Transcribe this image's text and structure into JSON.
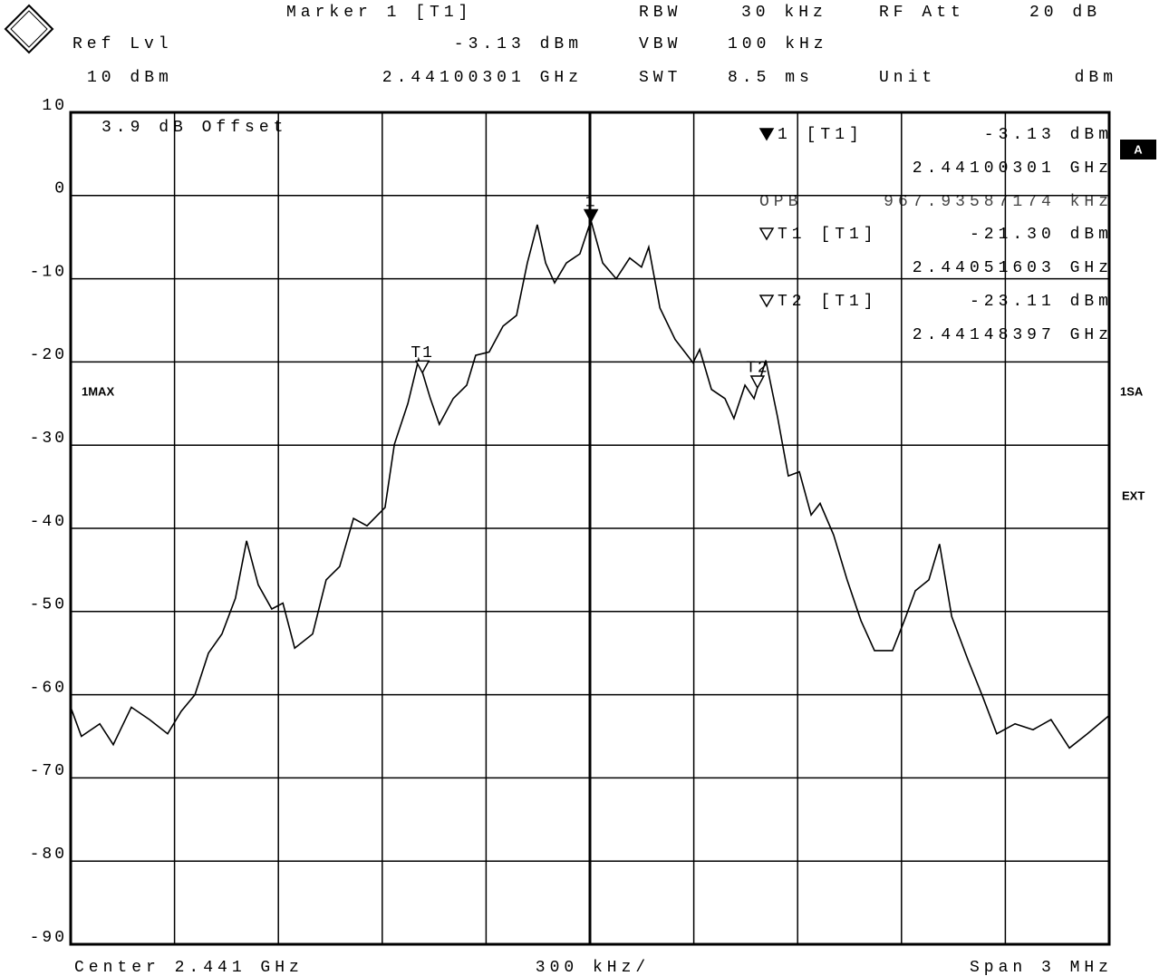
{
  "header": {
    "marker": "Marker 1 [T1]",
    "ref_lvl_label": "Ref Lvl",
    "ref_lvl": "10 dBm",
    "marker_level": "-3.13 dBm",
    "marker_freq": "2.44100301 GHz",
    "rbw_label": "RBW",
    "rbw": "30 kHz",
    "vbw_label": "VBW",
    "vbw": "100 kHz",
    "swt_label": "SWT",
    "swt": "8.5 ms",
    "rf_att_label": "RF Att",
    "rf_att": "20 dB",
    "unit_label": "Unit",
    "unit": "dBm"
  },
  "chart_data": {
    "type": "line",
    "annotation": "3.9 dB Offset",
    "color": "#000000",
    "grid": true,
    "xlim": [
      2.4395,
      2.4425
    ],
    "ylim": [
      -90,
      10
    ],
    "yticks": [
      10,
      0,
      -10,
      -20,
      -30,
      -40,
      -50,
      -60,
      -70,
      -80,
      -90
    ],
    "x": [
      2.4395,
      2.439531,
      2.439584,
      2.439623,
      2.439675,
      2.439728,
      2.43978,
      2.439819,
      2.439859,
      2.439898,
      2.439937,
      2.439976,
      2.440008,
      2.440042,
      2.440081,
      2.440113,
      2.440147,
      2.440199,
      2.440238,
      2.440277,
      2.440317,
      2.440356,
      2.440408,
      2.440435,
      2.440474,
      2.440505,
      2.440539,
      2.440565,
      2.440605,
      2.440644,
      2.44067,
      2.440709,
      2.440749,
      2.440788,
      2.440819,
      2.440848,
      2.440872,
      2.440898,
      2.440932,
      2.440971,
      2.441003,
      2.441037,
      2.441076,
      2.441115,
      2.441149,
      2.44117,
      2.441202,
      2.441246,
      2.441298,
      2.441317,
      2.441351,
      2.44139,
      2.441416,
      2.441448,
      2.441474,
      2.441508,
      2.441542,
      2.441573,
      2.441605,
      2.441639,
      2.441665,
      2.441704,
      2.441743,
      2.441783,
      2.441822,
      2.441874,
      2.441908,
      2.44194,
      2.441979,
      2.44201,
      2.442045,
      2.442092,
      2.442136,
      2.442175,
      2.442228,
      2.44228,
      2.442332,
      2.442385,
      2.442437,
      2.4425
    ],
    "values": [
      -61.5,
      -65,
      -63.5,
      -66,
      -61.5,
      -63,
      -64.7,
      -62,
      -60,
      -55,
      -52.7,
      -48.4,
      -41.5,
      -46.8,
      -49.7,
      -49,
      -54.4,
      -52.7,
      -46.2,
      -44.6,
      -38.8,
      -39.7,
      -37.5,
      -29.9,
      -25,
      -19.7,
      -24.4,
      -27.5,
      -24.4,
      -22.8,
      -19.2,
      -18.8,
      -15.7,
      -14.4,
      -8.1,
      -3.5,
      -8.1,
      -10.5,
      -8.1,
      -7,
      -3,
      -8.1,
      -10,
      -7.5,
      -8.6,
      -6.2,
      -13.5,
      -17.3,
      -20.1,
      -18.5,
      -23.3,
      -24.4,
      -26.8,
      -22.8,
      -24.4,
      -19.8,
      -26.6,
      -33.7,
      -33.2,
      -38.4,
      -37,
      -40.8,
      -46.2,
      -51.1,
      -54.7,
      -54.7,
      -51.1,
      -47.5,
      -46.2,
      -41.9,
      -50.6,
      -55.8,
      -60.4,
      -64.7,
      -63.5,
      -64.2,
      -63,
      -66.4,
      -64.7,
      -62.5
    ],
    "markers": [
      {
        "label": "1",
        "x": 2.44100301,
        "value": -3.13,
        "filled": true,
        "readout_label": "1 [T1]",
        "readout_value": "-3.13 dBm",
        "readout_freq": "2.44100301 GHz"
      },
      {
        "label": "T1",
        "x": 2.44051603,
        "value": -21.3,
        "filled": false,
        "readout_label": "T1 [T1]",
        "readout_value": "-21.30 dBm",
        "readout_freq": "2.44051603 GHz"
      },
      {
        "label": "T2",
        "x": 2.44148397,
        "value": -23.11,
        "filled": false,
        "readout_label": "T2 [T1]",
        "readout_value": "-23.11 dBm",
        "readout_freq": "2.44148397 GHz"
      }
    ],
    "opb_label": "OPB",
    "opb": "967.93587174 kHz"
  },
  "side_labels": {
    "screen": "A",
    "trace": "1MAX",
    "sweep": "1SA",
    "trigger": "EXT"
  },
  "footer": {
    "center": "Center 2.441 GHz",
    "per_div": "300 kHz/",
    "span": "Span 3 MHz"
  }
}
